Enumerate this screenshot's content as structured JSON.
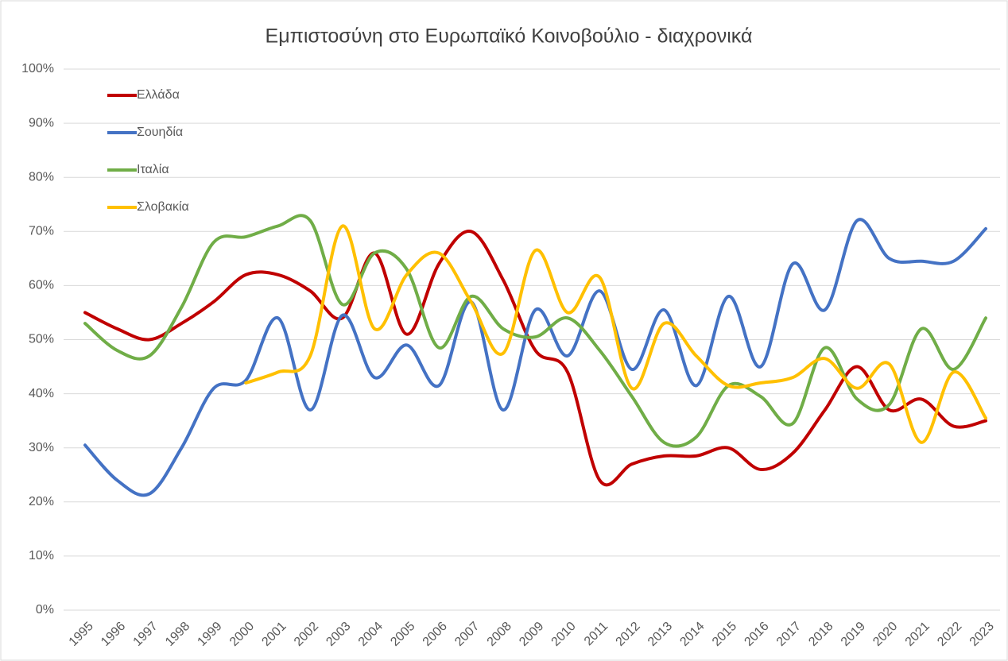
{
  "chart_data": {
    "type": "line",
    "title": "Εμπιστοσύνη στο Ευρωπαϊκό Κοινοβούλιο - διαχρονικά",
    "categories": [
      "1995",
      "1996",
      "1997",
      "1998",
      "1999",
      "2000",
      "2001",
      "2002",
      "2003",
      "2004",
      "2005",
      "2006",
      "2007",
      "2008",
      "2009",
      "2010",
      "2011",
      "2012",
      "2013",
      "2014",
      "2015",
      "2016",
      "2017",
      "2018",
      "2019",
      "2020",
      "2021",
      "2022",
      "2023"
    ],
    "series": [
      {
        "name": "Ελλάδα",
        "color": "#c00000",
        "values": [
          55,
          52,
          50,
          53,
          57,
          62,
          62,
          59,
          54,
          66,
          51,
          64,
          70,
          61,
          48,
          44,
          24,
          27,
          28.5,
          28.5,
          30,
          26,
          29,
          37,
          45,
          37,
          39,
          34,
          35
        ]
      },
      {
        "name": "Σουηδία",
        "color": "#4472c4",
        "values": [
          30.5,
          24,
          21.5,
          30,
          41,
          42.5,
          54,
          37,
          54.5,
          43,
          49,
          41.5,
          57,
          37,
          55.5,
          47,
          59,
          44.5,
          55.5,
          41.5,
          58,
          45,
          64,
          55.5,
          72,
          65,
          64.5,
          64.5,
          70.5
        ]
      },
      {
        "name": "Ιταλία",
        "color": "#70ad47",
        "values": [
          53,
          48,
          47,
          56,
          68,
          69,
          71,
          72,
          56.5,
          66,
          63,
          48.5,
          58,
          52,
          50.5,
          54,
          48,
          39.5,
          31,
          32,
          41.5,
          39.5,
          34.5,
          48.5,
          39,
          38,
          52,
          44.5,
          54
        ]
      },
      {
        "name": "Σλοβακία",
        "color": "#ffc000",
        "values": [
          null,
          null,
          null,
          null,
          null,
          42,
          44,
          47,
          71,
          52,
          62,
          66,
          57,
          47.5,
          66.5,
          55,
          61.5,
          41,
          53,
          47,
          41.5,
          42,
          43,
          46.5,
          41,
          45.5,
          31,
          44,
          35.5
        ]
      }
    ],
    "ylim": [
      0,
      100
    ],
    "yticks": [
      {
        "value": 0,
        "label": "0%"
      },
      {
        "value": 10,
        "label": "10%"
      },
      {
        "value": 20,
        "label": "20%"
      },
      {
        "value": 30,
        "label": "30%"
      },
      {
        "value": 40,
        "label": "40%"
      },
      {
        "value": 50,
        "label": "50%"
      },
      {
        "value": 60,
        "label": "60%"
      },
      {
        "value": 70,
        "label": "70%"
      },
      {
        "value": 80,
        "label": "80%"
      },
      {
        "value": 90,
        "label": "90%"
      },
      {
        "value": 100,
        "label": "100%"
      }
    ],
    "grid": true,
    "legend": "top-left"
  }
}
